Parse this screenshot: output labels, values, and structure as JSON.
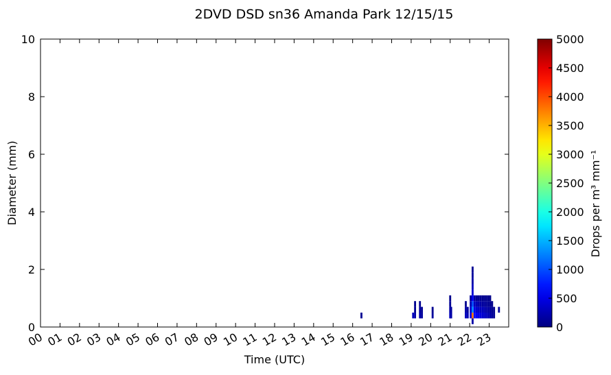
{
  "chart_data": {
    "type": "heatmap",
    "title": "2DVD DSD sn36 Amanda Park 12/15/15",
    "x_label": "Time (UTC)",
    "y_label": "Diameter (mm)",
    "colorbar_label": "Drops per m³  mm⁻¹",
    "colormap": "jet",
    "xlim": [
      0,
      24
    ],
    "xticks": [
      {
        "value": 0,
        "label": "00"
      },
      {
        "value": 1,
        "label": "01"
      },
      {
        "value": 2,
        "label": "02"
      },
      {
        "value": 3,
        "label": "03"
      },
      {
        "value": 4,
        "label": "04"
      },
      {
        "value": 5,
        "label": "05"
      },
      {
        "value": 6,
        "label": "06"
      },
      {
        "value": 7,
        "label": "07"
      },
      {
        "value": 8,
        "label": "08"
      },
      {
        "value": 9,
        "label": "09"
      },
      {
        "value": 10,
        "label": "10"
      },
      {
        "value": 11,
        "label": "11"
      },
      {
        "value": 12,
        "label": "12"
      },
      {
        "value": 13,
        "label": "13"
      },
      {
        "value": 14,
        "label": "14"
      },
      {
        "value": 15,
        "label": "15"
      },
      {
        "value": 16,
        "label": "16"
      },
      {
        "value": 17,
        "label": "17"
      },
      {
        "value": 18,
        "label": "18"
      },
      {
        "value": 19,
        "label": "19"
      },
      {
        "value": 20,
        "label": "20"
      },
      {
        "value": 21,
        "label": "21"
      },
      {
        "value": 22,
        "label": "22"
      },
      {
        "value": 23,
        "label": "23"
      }
    ],
    "ylim": [
      0,
      10
    ],
    "yticks": [
      0,
      2,
      4,
      6,
      8,
      10
    ],
    "clim": [
      0,
      5000
    ],
    "cticks": [
      0,
      500,
      1000,
      1500,
      2000,
      2500,
      3000,
      3500,
      4000,
      4500,
      5000
    ],
    "cells": {
      "x": [
        16.4,
        19.05,
        19.15,
        19.15,
        19.15,
        19.4,
        19.4,
        19.4,
        19.5,
        19.5,
        20.05,
        20.05,
        20.95,
        20.95,
        20.95,
        20.95,
        21.0,
        21.0,
        21.75,
        21.75,
        21.75,
        21.85,
        21.85,
        22.0,
        22.0,
        22.0,
        22.0,
        22.1,
        22.1,
        22.1,
        22.1,
        22.1,
        22.1,
        22.1,
        22.1,
        22.1,
        22.1,
        22.2,
        22.2,
        22.2,
        22.2,
        22.3,
        22.3,
        22.3,
        22.3,
        22.4,
        22.4,
        22.4,
        22.4,
        22.5,
        22.5,
        22.5,
        22.5,
        22.6,
        22.6,
        22.6,
        22.6,
        22.7,
        22.7,
        22.7,
        22.7,
        22.8,
        22.8,
        22.8,
        22.8,
        22.9,
        22.9,
        22.9,
        22.9,
        23.0,
        23.0,
        23.0,
        23.0,
        23.1,
        23.1,
        23.1,
        23.2,
        23.2,
        23.45
      ],
      "y": [
        0.3,
        0.3,
        0.3,
        0.5,
        0.7,
        0.3,
        0.5,
        0.7,
        0.3,
        0.5,
        0.3,
        0.5,
        0.3,
        0.5,
        0.7,
        0.9,
        0.3,
        0.5,
        0.3,
        0.5,
        0.7,
        0.3,
        0.5,
        0.3,
        0.5,
        0.7,
        0.9,
        0.1,
        0.3,
        0.5,
        0.7,
        0.9,
        1.1,
        1.3,
        1.5,
        1.7,
        1.9,
        0.3,
        0.5,
        0.7,
        0.9,
        0.3,
        0.5,
        0.7,
        0.9,
        0.3,
        0.5,
        0.7,
        0.9,
        0.3,
        0.5,
        0.7,
        0.9,
        0.3,
        0.5,
        0.7,
        0.9,
        0.3,
        0.5,
        0.7,
        0.9,
        0.3,
        0.5,
        0.7,
        0.9,
        0.3,
        0.5,
        0.7,
        0.9,
        0.3,
        0.5,
        0.7,
        0.9,
        0.3,
        0.5,
        0.7,
        0.3,
        0.5,
        0.5
      ],
      "values": [
        100,
        300,
        200,
        100,
        80,
        200,
        150,
        80,
        150,
        100,
        150,
        80,
        300,
        200,
        100,
        60,
        200,
        150,
        300,
        200,
        80,
        250,
        150,
        600,
        400,
        250,
        100,
        200,
        3800,
        1300,
        1000,
        600,
        400,
        300,
        200,
        150,
        100,
        700,
        500,
        300,
        150,
        600,
        400,
        250,
        100,
        500,
        350,
        200,
        100,
        450,
        300,
        200,
        90,
        400,
        300,
        150,
        80,
        350,
        250,
        150,
        80,
        300,
        200,
        120,
        70,
        250,
        180,
        100,
        60,
        200,
        150,
        80,
        50,
        150,
        100,
        60,
        100,
        70,
        150
      ]
    }
  }
}
